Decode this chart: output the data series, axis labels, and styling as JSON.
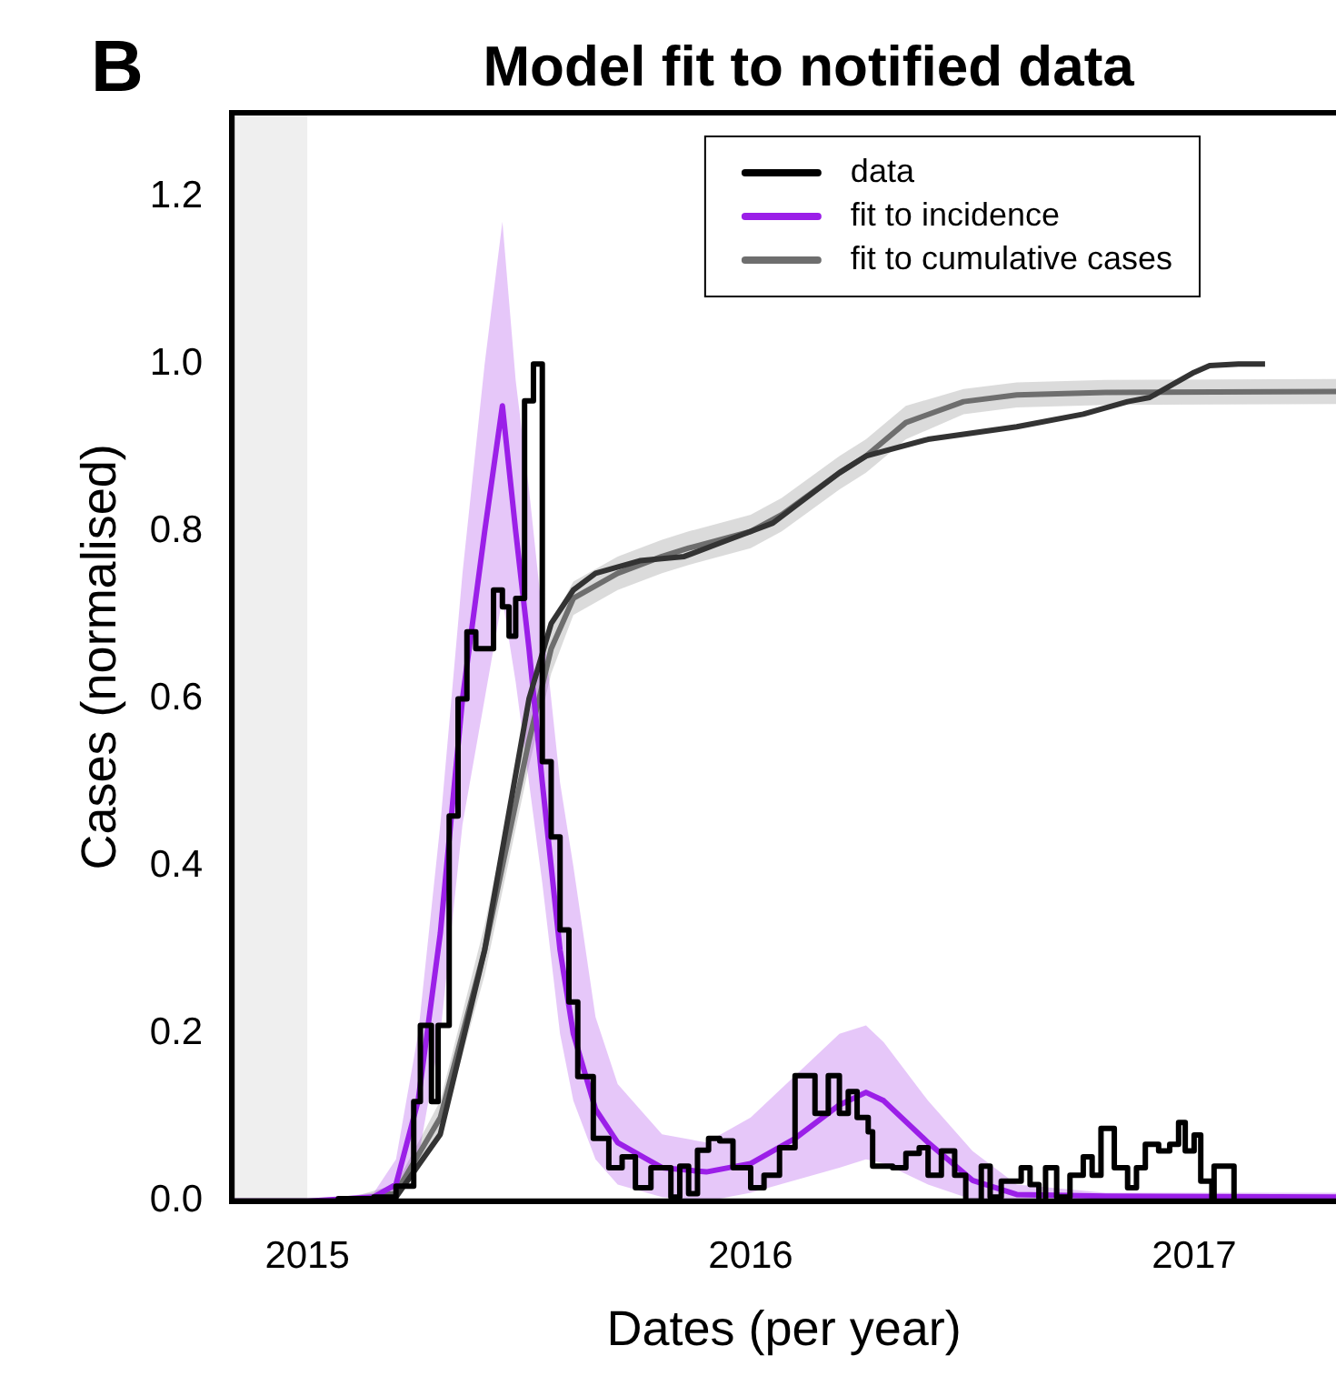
{
  "chart_data": {
    "type": "line",
    "title": "Model fit to notified data",
    "xlabel": "Dates (per year)",
    "ylabel": "Cases (normalised)",
    "annotations": [
      "B"
    ],
    "xlim": [
      2014.83,
      2017.32
    ],
    "xticks": [
      2015,
      2016,
      2017
    ],
    "ylim": [
      0,
      1.3
    ],
    "yticks": [
      {
        "value": 0,
        "label": "0.0"
      },
      {
        "value": 0.2,
        "label": "0.2"
      },
      {
        "value": 0.4,
        "label": "0.4"
      },
      {
        "value": 0.6,
        "label": "0.6"
      },
      {
        "value": 0.8,
        "label": "0.8"
      },
      {
        "value": 1,
        "label": "1.0"
      },
      {
        "value": 1.2,
        "label": "1.2"
      }
    ],
    "grid": false,
    "legend": "top right",
    "marker": "none",
    "bands": [
      {
        "axis": "x",
        "from": 2014.83,
        "to": 2015,
        "color": "#efefef"
      }
    ],
    "series": [
      {
        "name": "data",
        "type": "step",
        "color": "#000000",
        "x": [
          2014.83,
          2015.07,
          2015.15,
          2015.2,
          2015.24,
          2015.255,
          2015.28,
          2015.295,
          2015.32,
          2015.34,
          2015.36,
          2015.38,
          2015.4,
          2015.42,
          2015.44,
          2015.455,
          2015.47,
          2015.49,
          2015.51,
          2015.53,
          2015.55,
          2015.57,
          2015.59,
          2015.61,
          2015.645,
          2015.68,
          2015.71,
          2015.74,
          2015.775,
          2015.82,
          2015.84,
          2015.86,
          2015.88,
          2015.905,
          2015.93,
          2015.96,
          2016.0,
          2016.03,
          2016.065,
          2016.1,
          2016.145,
          2016.175,
          2016.2,
          2016.22,
          2016.24,
          2016.265,
          2016.275,
          2016.32,
          2016.35,
          2016.38,
          2016.4,
          2016.43,
          2016.46,
          2016.485,
          2016.52,
          2016.54,
          2016.565,
          2016.61,
          2016.63,
          2016.65,
          2016.665,
          2016.69,
          2016.72,
          2016.75,
          2016.77,
          2016.79,
          2016.82,
          2016.85,
          2016.87,
          2016.89,
          2016.92,
          2016.945,
          2016.965,
          2016.98,
          2017.0,
          2017.015,
          2017.04,
          2017.045,
          2017.09
        ],
        "values": [
          0,
          0.003,
          0.005,
          0.018,
          0.119,
          0.21,
          0.119,
          0.21,
          0.46,
          0.6,
          0.68,
          0.66,
          0.66,
          0.73,
          0.71,
          0.675,
          0.72,
          0.956,
          1.0,
          0.525,
          0.435,
          0.324,
          0.238,
          0.149,
          0.075,
          0.04,
          0.053,
          0.016,
          0.04,
          0.005,
          0.042,
          0.009,
          0.061,
          0.075,
          0.072,
          0.04,
          0.016,
          0.031,
          0.064,
          0.15,
          0.105,
          0.15,
          0.105,
          0.131,
          0.1,
          0.083,
          0.042,
          0.04,
          0.057,
          0.064,
          0.031,
          0.06,
          0.031,
          0,
          0.042,
          0.005,
          0.024,
          0.04,
          0.02,
          0,
          0.04,
          0.005,
          0.031,
          0.053,
          0.031,
          0.087,
          0.04,
          0.016,
          0.04,
          0.068,
          0.06,
          0.068,
          0.094,
          0.06,
          0.079,
          0.024,
          0,
          0.042,
          0
        ]
      },
      {
        "color": "#333333",
        "x": [
          2015.2,
          2015.3,
          2015.4,
          2015.5,
          2015.55,
          2015.6,
          2015.65,
          2015.75,
          2015.85,
          2015.95,
          2016.05,
          2016.1,
          2016.2,
          2016.26,
          2016.4,
          2016.6,
          2016.75,
          2016.85,
          2016.9,
          2016.95,
          2017.0,
          2017.035,
          2017.1,
          2017.16
        ],
        "values": [
          0.005,
          0.08,
          0.3,
          0.6,
          0.69,
          0.73,
          0.75,
          0.765,
          0.77,
          0.79,
          0.81,
          0.83,
          0.87,
          0.89,
          0.91,
          0.925,
          0.94,
          0.955,
          0.96,
          0.975,
          0.99,
          0.998,
          1.0,
          1.0
        ]
      },
      {
        "name": "fit to incidence",
        "color": "#9b1fe8",
        "x": [
          2014.83,
          2015.0,
          2015.15,
          2015.2,
          2015.25,
          2015.3,
          2015.35,
          2015.4,
          2015.44,
          2015.47,
          2015.5,
          2015.53,
          2015.57,
          2015.6,
          2015.65,
          2015.7,
          2015.8,
          2015.9,
          2016.0,
          2016.1,
          2016.2,
          2016.26,
          2016.3,
          2016.4,
          2016.5,
          2016.6,
          2016.8,
          2017.32
        ],
        "values": [
          0,
          0,
          0.005,
          0.02,
          0.12,
          0.32,
          0.6,
          0.8,
          0.95,
          0.8,
          0.66,
          0.5,
          0.3,
          0.2,
          0.11,
          0.07,
          0.04,
          0.035,
          0.045,
          0.075,
          0.115,
          0.13,
          0.12,
          0.07,
          0.025,
          0.008,
          0.006,
          0.005
        ],
        "upper": [
          0,
          0,
          0.01,
          0.05,
          0.2,
          0.45,
          0.75,
          1.0,
          1.17,
          0.98,
          0.85,
          0.7,
          0.5,
          0.4,
          0.22,
          0.14,
          0.08,
          0.07,
          0.1,
          0.15,
          0.2,
          0.21,
          0.19,
          0.12,
          0.06,
          0.02,
          0.01,
          0.01
        ],
        "lower": [
          0,
          0,
          0,
          0,
          0.05,
          0.2,
          0.45,
          0.6,
          0.72,
          0.62,
          0.5,
          0.38,
          0.2,
          0.12,
          0.05,
          0.02,
          0.005,
          0,
          0.01,
          0.025,
          0.04,
          0.05,
          0.045,
          0.02,
          0.002,
          0,
          0,
          0
        ]
      },
      {
        "name": "fit to cumulative cases",
        "color": "#6e6e6e",
        "x": [
          2015.1,
          2015.2,
          2015.3,
          2015.4,
          2015.5,
          2015.55,
          2015.6,
          2015.7,
          2015.8,
          2015.86,
          2016.0,
          2016.07,
          2016.2,
          2016.26,
          2016.35,
          2016.48,
          2016.6,
          2016.8,
          2017.32
        ],
        "values": [
          0,
          0.01,
          0.1,
          0.3,
          0.55,
          0.66,
          0.72,
          0.75,
          0.77,
          0.78,
          0.8,
          0.82,
          0.87,
          0.89,
          0.93,
          0.955,
          0.963,
          0.966,
          0.967
        ],
        "upper": [
          0.005,
          0.02,
          0.12,
          0.33,
          0.58,
          0.69,
          0.74,
          0.77,
          0.79,
          0.8,
          0.82,
          0.84,
          0.89,
          0.91,
          0.95,
          0.97,
          0.978,
          0.981,
          0.982
        ],
        "lower": [
          0,
          0,
          0.08,
          0.27,
          0.52,
          0.63,
          0.7,
          0.73,
          0.75,
          0.76,
          0.78,
          0.8,
          0.85,
          0.87,
          0.91,
          0.94,
          0.948,
          0.951,
          0.952
        ]
      }
    ]
  }
}
